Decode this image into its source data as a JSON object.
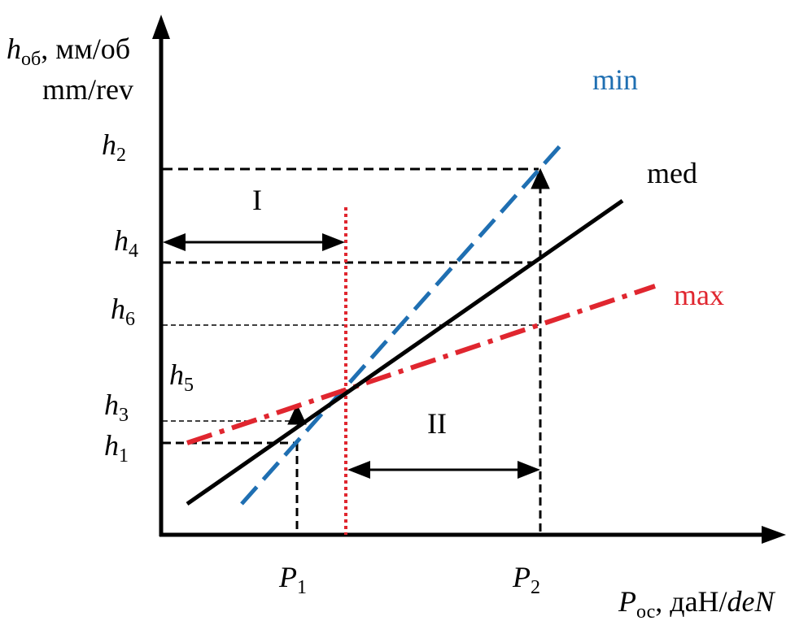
{
  "diagram": {
    "axes": {
      "y_label": {
        "symbol": "h",
        "subscript": "об",
        "units_ru": ", мм/об",
        "units_en": "mm/rev"
      },
      "x_label": {
        "symbol": "P",
        "subscript": "ос",
        "units_ru": ", даН/",
        "units_en": "deN"
      }
    },
    "y_ticks": [
      {
        "symbol": "h",
        "sub": "2"
      },
      {
        "symbol": "h",
        "sub": "4"
      },
      {
        "symbol": "h",
        "sub": "6"
      },
      {
        "symbol": "h",
        "sub": "5"
      },
      {
        "symbol": "h",
        "sub": "3"
      },
      {
        "symbol": "h",
        "sub": "1"
      }
    ],
    "x_ticks": [
      {
        "symbol": "P",
        "sub": "1"
      },
      {
        "symbol": "P",
        "sub": "2"
      }
    ],
    "lines": {
      "min": "min",
      "med": "med",
      "max": "max"
    },
    "regions": {
      "region_1": "I",
      "region_2": "II"
    },
    "colors": {
      "axis": "#000000",
      "med_line": "#000000",
      "min_line": "#1f6fb2",
      "max_line": "#e0262f",
      "boundary_line": "#e0262f",
      "guide_line": "#000000"
    }
  }
}
